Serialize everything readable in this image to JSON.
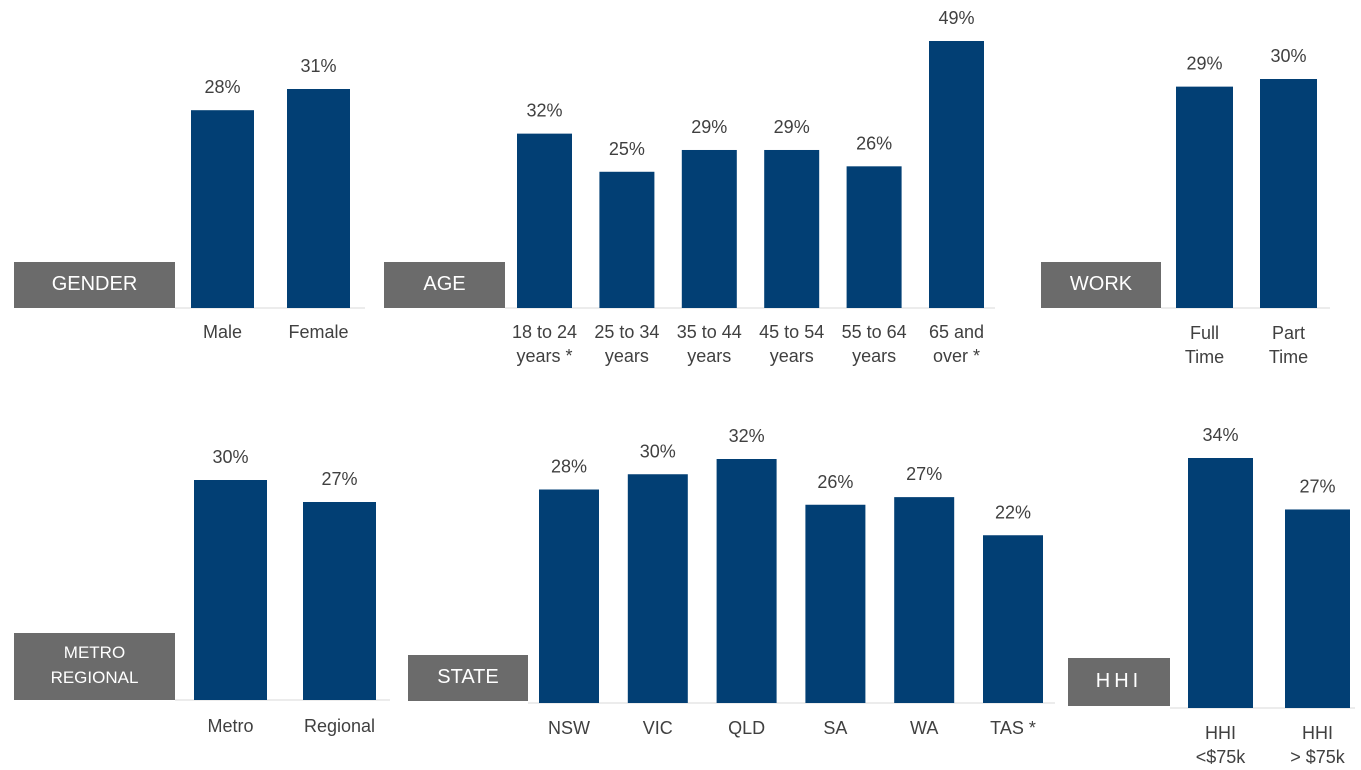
{
  "chart_data": [
    {
      "type": "bar",
      "title": "GENDER",
      "categories": [
        "Male",
        "Female"
      ],
      "values": [
        28,
        31
      ],
      "value_labels": [
        "28%",
        "31%"
      ],
      "color": "#023f74"
    },
    {
      "type": "bar",
      "title": "AGE",
      "categories": [
        "18 to 24\nyears *",
        "25 to 34\nyears",
        "35 to 44\nyears",
        "45 to 54\nyears",
        "55 to 64\nyears",
        "65 and\nover *"
      ],
      "values": [
        32,
        25,
        29,
        29,
        26,
        49
      ],
      "value_labels": [
        "32%",
        "25%",
        "29%",
        "29%",
        "26%",
        "49%"
      ],
      "color": "#023f74"
    },
    {
      "type": "bar",
      "title": "WORK",
      "categories": [
        "Full\nTime",
        "Part\nTime"
      ],
      "values": [
        29,
        30
      ],
      "value_labels": [
        "29%",
        "30%"
      ],
      "color": "#023f74"
    },
    {
      "type": "bar",
      "title": "METRO\nREGIONAL",
      "categories": [
        "Metro",
        "Regional"
      ],
      "values": [
        30,
        27
      ],
      "value_labels": [
        "30%",
        "27%"
      ],
      "color": "#023f74"
    },
    {
      "type": "bar",
      "title": "STATE",
      "categories": [
        "NSW",
        "VIC",
        "QLD",
        "SA",
        "WA",
        "TAS *"
      ],
      "values": [
        28,
        30,
        32,
        26,
        27,
        22
      ],
      "value_labels": [
        "28%",
        "30%",
        "32%",
        "26%",
        "27%",
        "22%"
      ],
      "color": "#023f74"
    },
    {
      "type": "bar",
      "title": "HHI",
      "categories": [
        "HHI\n<$75k",
        "HHI\n> $75k"
      ],
      "values": [
        34,
        27
      ],
      "value_labels": [
        "34%",
        "27%"
      ],
      "color": "#023f74"
    }
  ]
}
